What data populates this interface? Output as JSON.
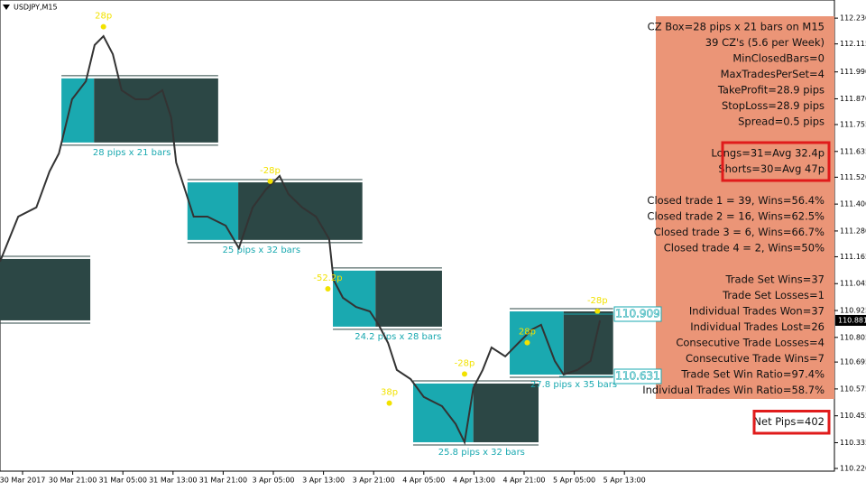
{
  "chart_data": {
    "type": "line",
    "title": "USDJPY,M15",
    "color": "#333333",
    "xlim": [
      -3.6,
      129.5
    ],
    "ylim": [
      110.208,
      112.311
    ],
    "xticks": [
      {
        "value": 0,
        "label": "30 Mar 2017"
      },
      {
        "value": 8,
        "label": "30 Mar 21:00"
      },
      {
        "value": 16,
        "label": "31 Mar 05:00"
      },
      {
        "value": 24,
        "label": "31 Mar 13:00"
      },
      {
        "value": 32,
        "label": "31 Mar 21:00"
      },
      {
        "value": 40,
        "label": "3 Apr 05:00"
      },
      {
        "value": 48,
        "label": "3 Apr 13:00"
      },
      {
        "value": 56,
        "label": "3 Apr 21:00"
      },
      {
        "value": 64,
        "label": "4 Apr 05:00"
      },
      {
        "value": 72,
        "label": "4 Apr 13:00"
      },
      {
        "value": 80,
        "label": "4 Apr 21:00"
      },
      {
        "value": 88,
        "label": "5 Apr 05:00"
      },
      {
        "value": 96,
        "label": "5 Apr 13:00"
      }
    ],
    "yticks": [
      {
        "value": 112.23,
        "label": "112.230"
      },
      112.115,
      {
        "value": 111.99,
        "label": "111.990"
      },
      {
        "value": 111.87,
        "label": "111.870"
      },
      111.755,
      111.635,
      {
        "value": 111.52,
        "label": "111.520"
      },
      {
        "value": 111.4,
        "label": "111.400"
      },
      {
        "value": 111.28,
        "label": "111.280"
      },
      111.165,
      111.045,
      110.925,
      110.805,
      110.695,
      110.575,
      110.455,
      110.335,
      {
        "value": 110.22,
        "label": "110.220"
      }
    ],
    "x": [
      -3.6,
      -0.7,
      2.2,
      4.3,
      5.8,
      7.9,
      10.1,
      11.5,
      12.9,
      14.4,
      15.8,
      18.0,
      20.1,
      22.3,
      23.7,
      24.5,
      25.9,
      27.3,
      29.5,
      32.4,
      34.5,
      36.7,
      38.8,
      41.0,
      42.4,
      44.6,
      46.8,
      48.9,
      49.6,
      51.1,
      53.2,
      55.4,
      56.8,
      58.3,
      59.7,
      61.9,
      64.0,
      66.9,
      69.1,
      70.5,
      71.9,
      73.4,
      74.8,
      77.0,
      79.1,
      81.3,
      82.7,
      84.9,
      86.3,
      88.5,
      90.6,
      92.1
    ],
    "values": [
      111.143,
      111.344,
      111.385,
      111.546,
      111.626,
      111.868,
      111.948,
      112.11,
      112.15,
      112.069,
      111.908,
      111.868,
      111.868,
      111.908,
      111.787,
      111.586,
      111.465,
      111.344,
      111.344,
      111.304,
      111.203,
      111.385,
      111.465,
      111.526,
      111.445,
      111.385,
      111.344,
      111.244,
      111.062,
      110.982,
      110.941,
      110.921,
      110.861,
      110.78,
      110.66,
      110.619,
      110.539,
      110.498,
      110.418,
      110.337,
      110.579,
      110.66,
      110.76,
      110.72,
      110.78,
      110.841,
      110.861,
      110.7,
      110.639,
      110.66,
      110.7,
      110.881
    ],
    "zones": [
      {
        "x0": -3.6,
        "x1": -3.6,
        "x2": 10.8,
        "top": 111.155,
        "bottom": 110.881
      },
      {
        "x0": 6.2,
        "x1": 11.4,
        "x2": 31.2,
        "top": 111.961,
        "bottom": 111.675,
        "label": "28 pips x 21 bars"
      },
      {
        "x0": 26.3,
        "x1": 34.4,
        "x2": 54.2,
        "top": 111.497,
        "bottom": 111.24,
        "label": "25 pips x 32 bars"
      },
      {
        "x0": 49.5,
        "x1": 56.3,
        "x2": 66.9,
        "top": 111.103,
        "bottom": 110.853,
        "label": "24.2 pips x 28 bars"
      },
      {
        "x0": 62.3,
        "x1": 71.9,
        "x2": 82.3,
        "top": 110.599,
        "bottom": 110.337,
        "label": "25.8 pips x 32 bars"
      },
      {
        "x0": 77.7,
        "x1": 86.3,
        "x2": 94.2,
        "top": 110.921,
        "bottom": 110.639,
        "label": "27.8 pips x 35 bars"
      }
    ],
    "annotations": [
      {
        "text": "28p",
        "x": 12.9,
        "y": 112.24
      },
      {
        "text": "-28p",
        "x": 39.5,
        "y": 111.55
      },
      {
        "text": "-52.2p",
        "x": 48.7,
        "y": 111.07
      },
      {
        "text": "38p",
        "x": 58.5,
        "y": 110.56
      },
      {
        "text": "-28p",
        "x": 70.5,
        "y": 110.69
      },
      {
        "text": "28p",
        "x": 80.5,
        "y": 110.83
      },
      {
        "text": "-28p",
        "x": 91.7,
        "y": 110.97
      }
    ],
    "price_tags": [
      {
        "value": 110.909,
        "label": "110.909"
      },
      {
        "value": 110.631,
        "label": "110.631"
      }
    ],
    "current_price": {
      "value": 110.881,
      "label": "110.881"
    }
  },
  "panel": {
    "groups": [
      [
        "CZ Box=28 pips x 21 bars on M15",
        "39 CZ's (5.6 per Week)",
        "MinClosedBars=0",
        "MaxTradesPerSet=4",
        "TakeProfit=28.9 pips",
        "StopLoss=28.9 pips",
        "Spread=0.5 pips"
      ],
      [
        "Longs=31=Avg 32.4p",
        "Shorts=30=Avg 47p"
      ],
      [
        "Closed trade 1 = 39, Wins=56.4%",
        "Closed trade 2 = 16, Wins=62.5%",
        "Closed trade 3 = 6, Wins=66.7%",
        "Closed trade 4 = 2, Wins=50%"
      ],
      [
        "Trade Set Wins=37",
        "Trade Set Losses=1",
        "Individual Trades Won=37",
        "Individual Trades Lost=26",
        "Consecutive Trade Losses=4",
        "Consecutive Trade Wins=7",
        "Trade Set Win Ratio=97.4%",
        "Individual Trades Win Ratio=58.7%"
      ],
      [
        "Net Pips=402"
      ]
    ]
  }
}
